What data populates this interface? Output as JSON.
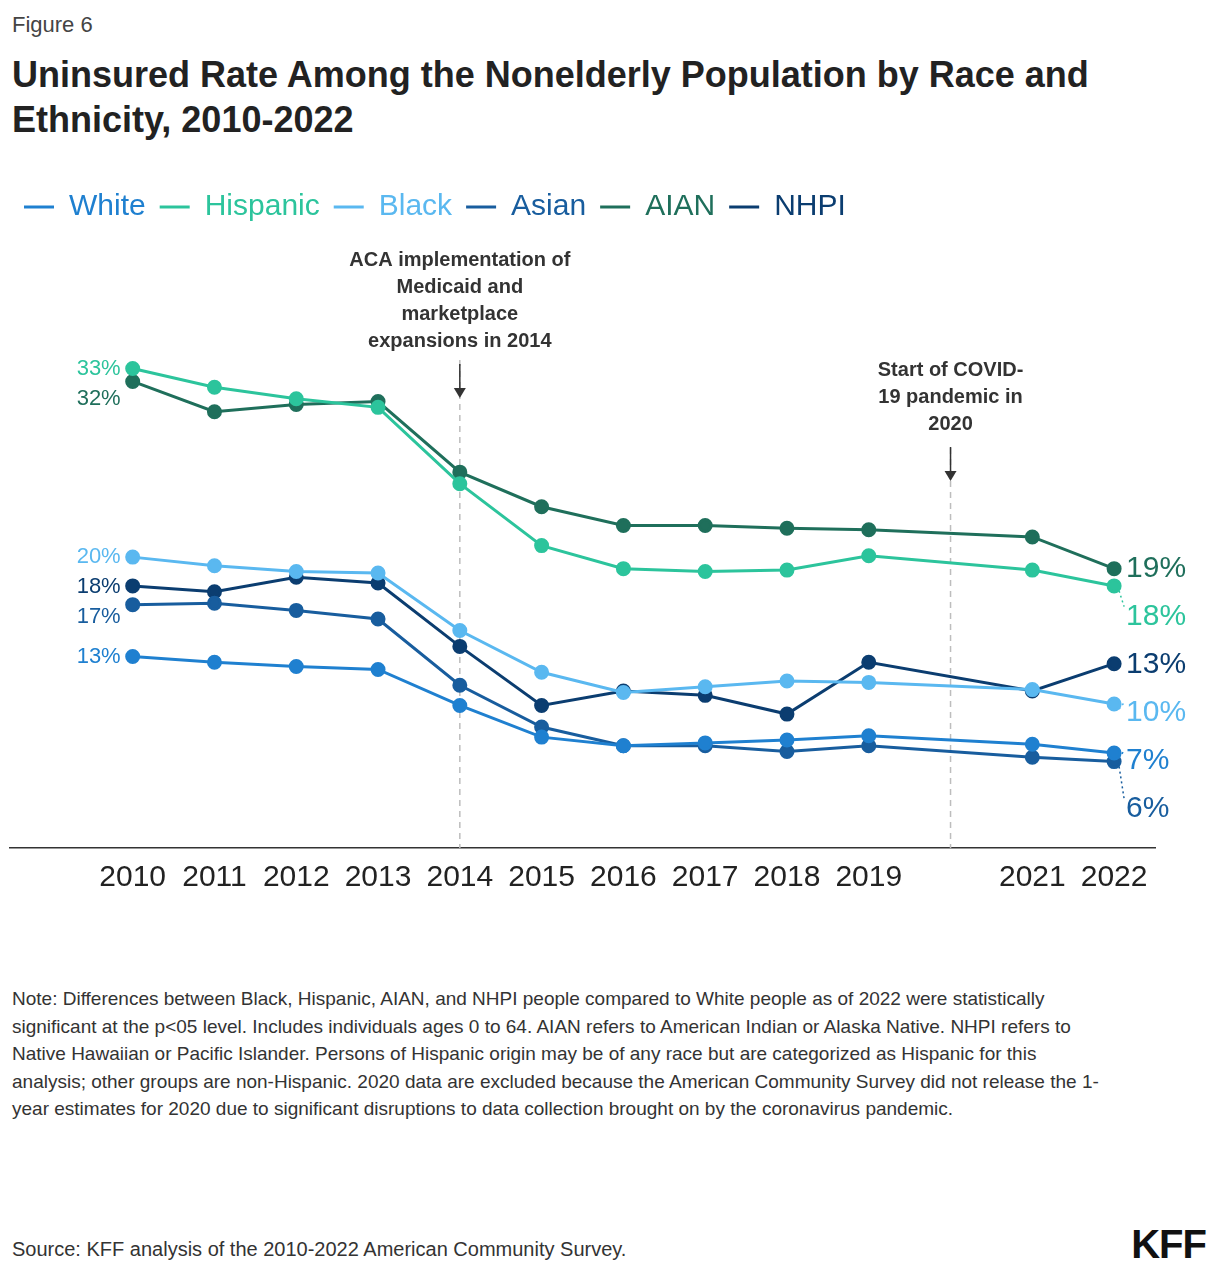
{
  "figure_label": "Figure 6",
  "chart_data": {
    "type": "line",
    "title": "Uninsured Rate Among the Nonelderly Population by Race and Ethnicity, 2010-2022",
    "x": [
      2010,
      2011,
      2012,
      2013,
      2014,
      2015,
      2016,
      2017,
      2018,
      2019,
      2021,
      2022
    ],
    "xlim": [
      2008.5,
      2022.5
    ],
    "xticks": [
      2010,
      2011,
      2012,
      2013,
      2014,
      2015,
      2016,
      2017,
      2018,
      2019,
      2021,
      2022
    ],
    "ylim": [
      0,
      40
    ],
    "tick_labels": "x",
    "grid": false,
    "legend": "top-left",
    "marker": "circle",
    "data_labels": true,
    "series": [
      {
        "name": "White",
        "color": "#1f80d0",
        "values": [
          13.3,
          12.9,
          12.6,
          12.4,
          9.9,
          7.7,
          7.1,
          7.3,
          7.5,
          7.8,
          7.2,
          6.6
        ],
        "value_labels": [
          "13%",
          null,
          null,
          null,
          null,
          null,
          null,
          null,
          null,
          null,
          null,
          "7%"
        ]
      },
      {
        "name": "Hispanic",
        "color": "#2cc49c",
        "values": [
          33.3,
          32.0,
          31.2,
          30.6,
          25.3,
          21.0,
          19.4,
          19.2,
          19.3,
          20.3,
          19.3,
          18.2
        ],
        "value_labels": [
          "33%",
          null,
          null,
          null,
          null,
          null,
          null,
          null,
          null,
          null,
          null,
          "18%"
        ]
      },
      {
        "name": "Black",
        "color": "#5ab8f0",
        "values": [
          20.2,
          19.6,
          19.2,
          19.1,
          15.1,
          12.2,
          10.8,
          11.2,
          11.6,
          11.5,
          11.0,
          10.0
        ],
        "value_labels": [
          "20%",
          null,
          null,
          null,
          null,
          null,
          null,
          null,
          null,
          null,
          null,
          "10%"
        ]
      },
      {
        "name": "Asian",
        "color": "#185d9e",
        "values": [
          16.9,
          17.0,
          16.5,
          15.9,
          11.3,
          8.4,
          7.1,
          7.1,
          6.7,
          7.1,
          6.3,
          6.0
        ],
        "value_labels": [
          "17%",
          null,
          null,
          null,
          null,
          null,
          null,
          null,
          null,
          null,
          null,
          "6%"
        ]
      },
      {
        "name": "AIAN",
        "color": "#1f6f5b",
        "values": [
          32.4,
          30.3,
          30.8,
          31.0,
          26.1,
          23.7,
          22.4,
          22.4,
          22.2,
          22.1,
          21.6,
          19.4
        ],
        "value_labels": [
          "32%",
          null,
          null,
          null,
          null,
          null,
          null,
          null,
          null,
          null,
          null,
          "19%"
        ]
      },
      {
        "name": "NHPI",
        "color": "#0b3d70",
        "values": [
          18.2,
          17.8,
          18.8,
          18.4,
          14.0,
          9.9,
          10.9,
          10.6,
          9.3,
          12.9,
          10.9,
          12.8
        ],
        "value_labels": [
          "18%",
          null,
          null,
          null,
          null,
          null,
          null,
          null,
          null,
          null,
          null,
          "13%"
        ]
      }
    ],
    "annotations": [
      {
        "x": 2014,
        "lines": [
          "ACA implementation of",
          "Medicaid and",
          "marketplace",
          "expansions in 2014"
        ]
      },
      {
        "x": 2020,
        "lines": [
          "Start of COVID-",
          "19 pandemic in",
          "2020"
        ]
      }
    ]
  },
  "note": "Note: Differences between Black, Hispanic, AIAN, and NHPI people compared to White people as of 2022 were statistically significant at the p<05 level. Includes individuals ages 0 to 64. AIAN refers to American Indian or Alaska Native. NHPI refers to Native Hawaiian or Pacific Islander. Persons of Hispanic origin may be of any race but are categorized as Hispanic for this analysis; other groups are non-Hispanic. 2020 data are excluded because the American Community Survey did not release the 1-year estimates for 2020 due to significant disruptions to data collection brought on by the coronavirus pandemic.",
  "source": "Source: KFF analysis of the 2010-2022 American Community Survey.",
  "logo": "KFF"
}
